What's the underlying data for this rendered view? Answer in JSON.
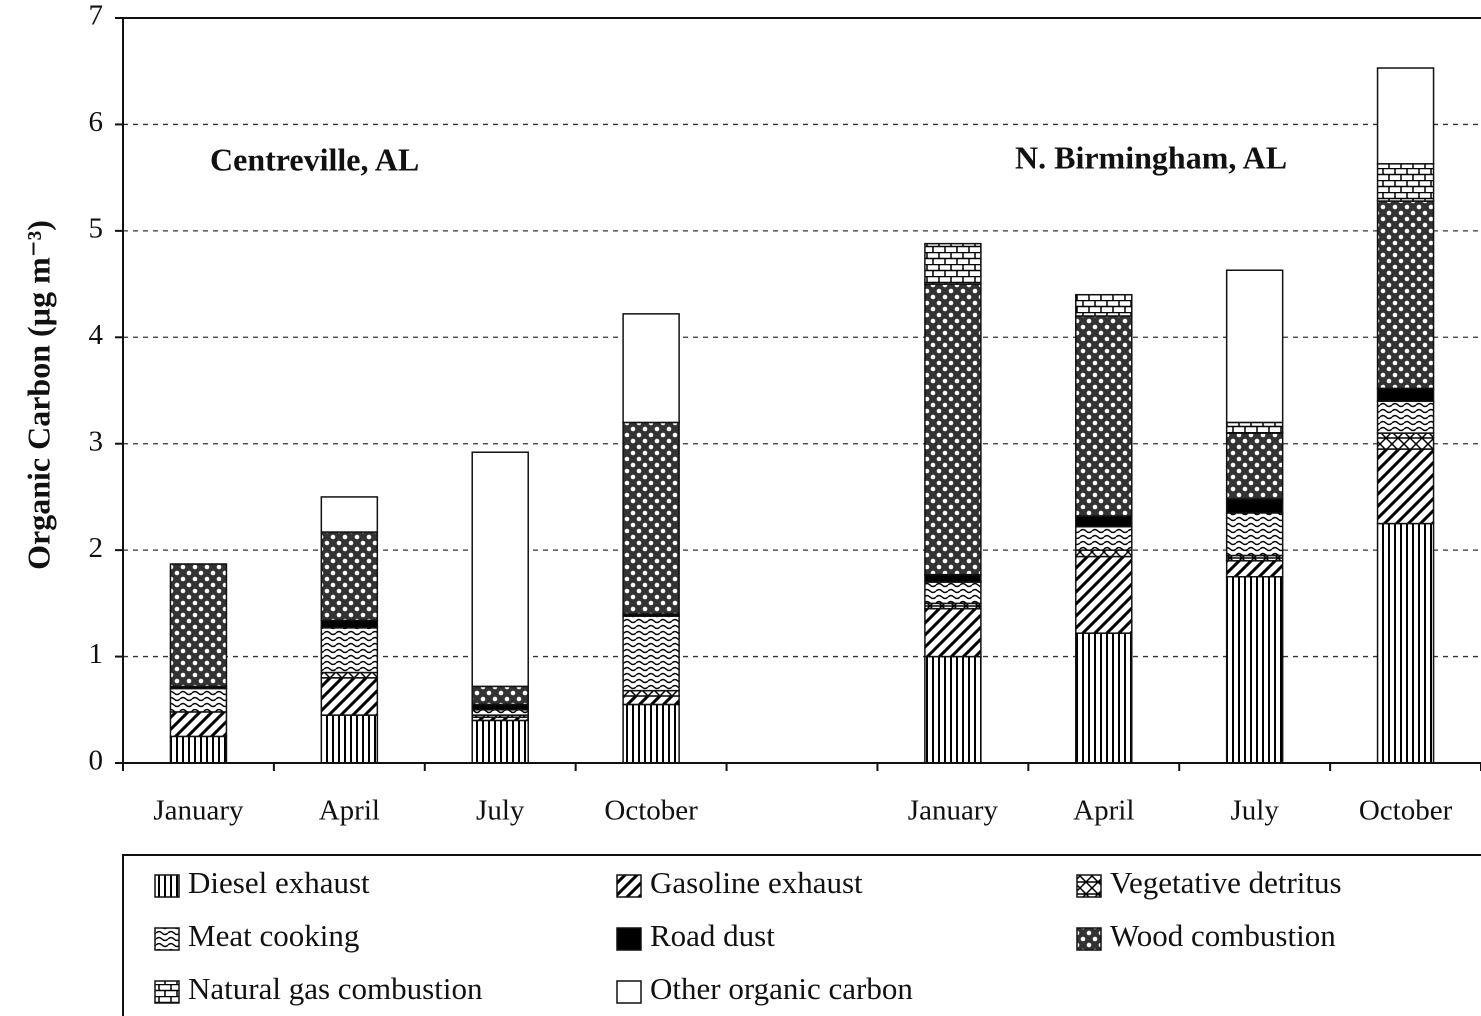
{
  "chart_data": {
    "type": "stacked_bar",
    "ylabel": "Organic Carbon (µg m⁻³)",
    "annotations": [
      "Centreville, AL",
      "N. Birmingham, AL"
    ],
    "categories": [
      "January",
      "April",
      "July",
      "October",
      null,
      "January",
      "April",
      "July",
      "October"
    ],
    "ylim": [
      0,
      7
    ],
    "yticks": [
      0,
      1,
      2,
      3,
      4,
      5,
      6,
      7
    ],
    "grid": true,
    "legend": "bottom",
    "series": [
      {
        "name": "Diesel exhaust",
        "color": "#000000",
        "pattern": "vertical",
        "values": [
          0.25,
          0.45,
          0.4,
          0.55,
          null,
          1.0,
          1.22,
          1.75,
          2.25
        ]
      },
      {
        "name": "Gasoline exhaust",
        "color": "#000000",
        "pattern": "diagonal",
        "values": [
          0.23,
          0.35,
          0.03,
          0.08,
          null,
          0.45,
          0.72,
          0.15,
          0.7
        ]
      },
      {
        "name": "Vegetative detritus",
        "color": "#000000",
        "pattern": "checker",
        "values": [
          0,
          0.05,
          0.02,
          0.05,
          null,
          0.05,
          0.06,
          0.05,
          0.15
        ]
      },
      {
        "name": "Meat cooking",
        "color": "#000000",
        "pattern": "wave",
        "values": [
          0.22,
          0.42,
          0.05,
          0.7,
          null,
          0.2,
          0.22,
          0.4,
          0.3
        ]
      },
      {
        "name": "Road dust",
        "color": "#000000",
        "pattern": "solid",
        "values": [
          0.02,
          0.07,
          0.05,
          0.02,
          null,
          0.07,
          0.1,
          0.13,
          0.12
        ]
      },
      {
        "name": "Wood combustion",
        "color": "#000000",
        "pattern": "circles",
        "values": [
          1.15,
          0.83,
          0.17,
          1.8,
          null,
          2.73,
          1.88,
          0.62,
          1.76
        ]
      },
      {
        "name": "Natural gas combustion",
        "color": "#000000",
        "pattern": "brick",
        "values": [
          0,
          0,
          0,
          0,
          null,
          0.38,
          0.2,
          0.1,
          0.35
        ]
      },
      {
        "name": "Other organic carbon",
        "color": "#000000",
        "pattern": "none",
        "values": [
          0,
          0.33,
          2.2,
          1.02,
          null,
          0,
          0,
          1.43,
          0.9
        ]
      }
    ]
  }
}
